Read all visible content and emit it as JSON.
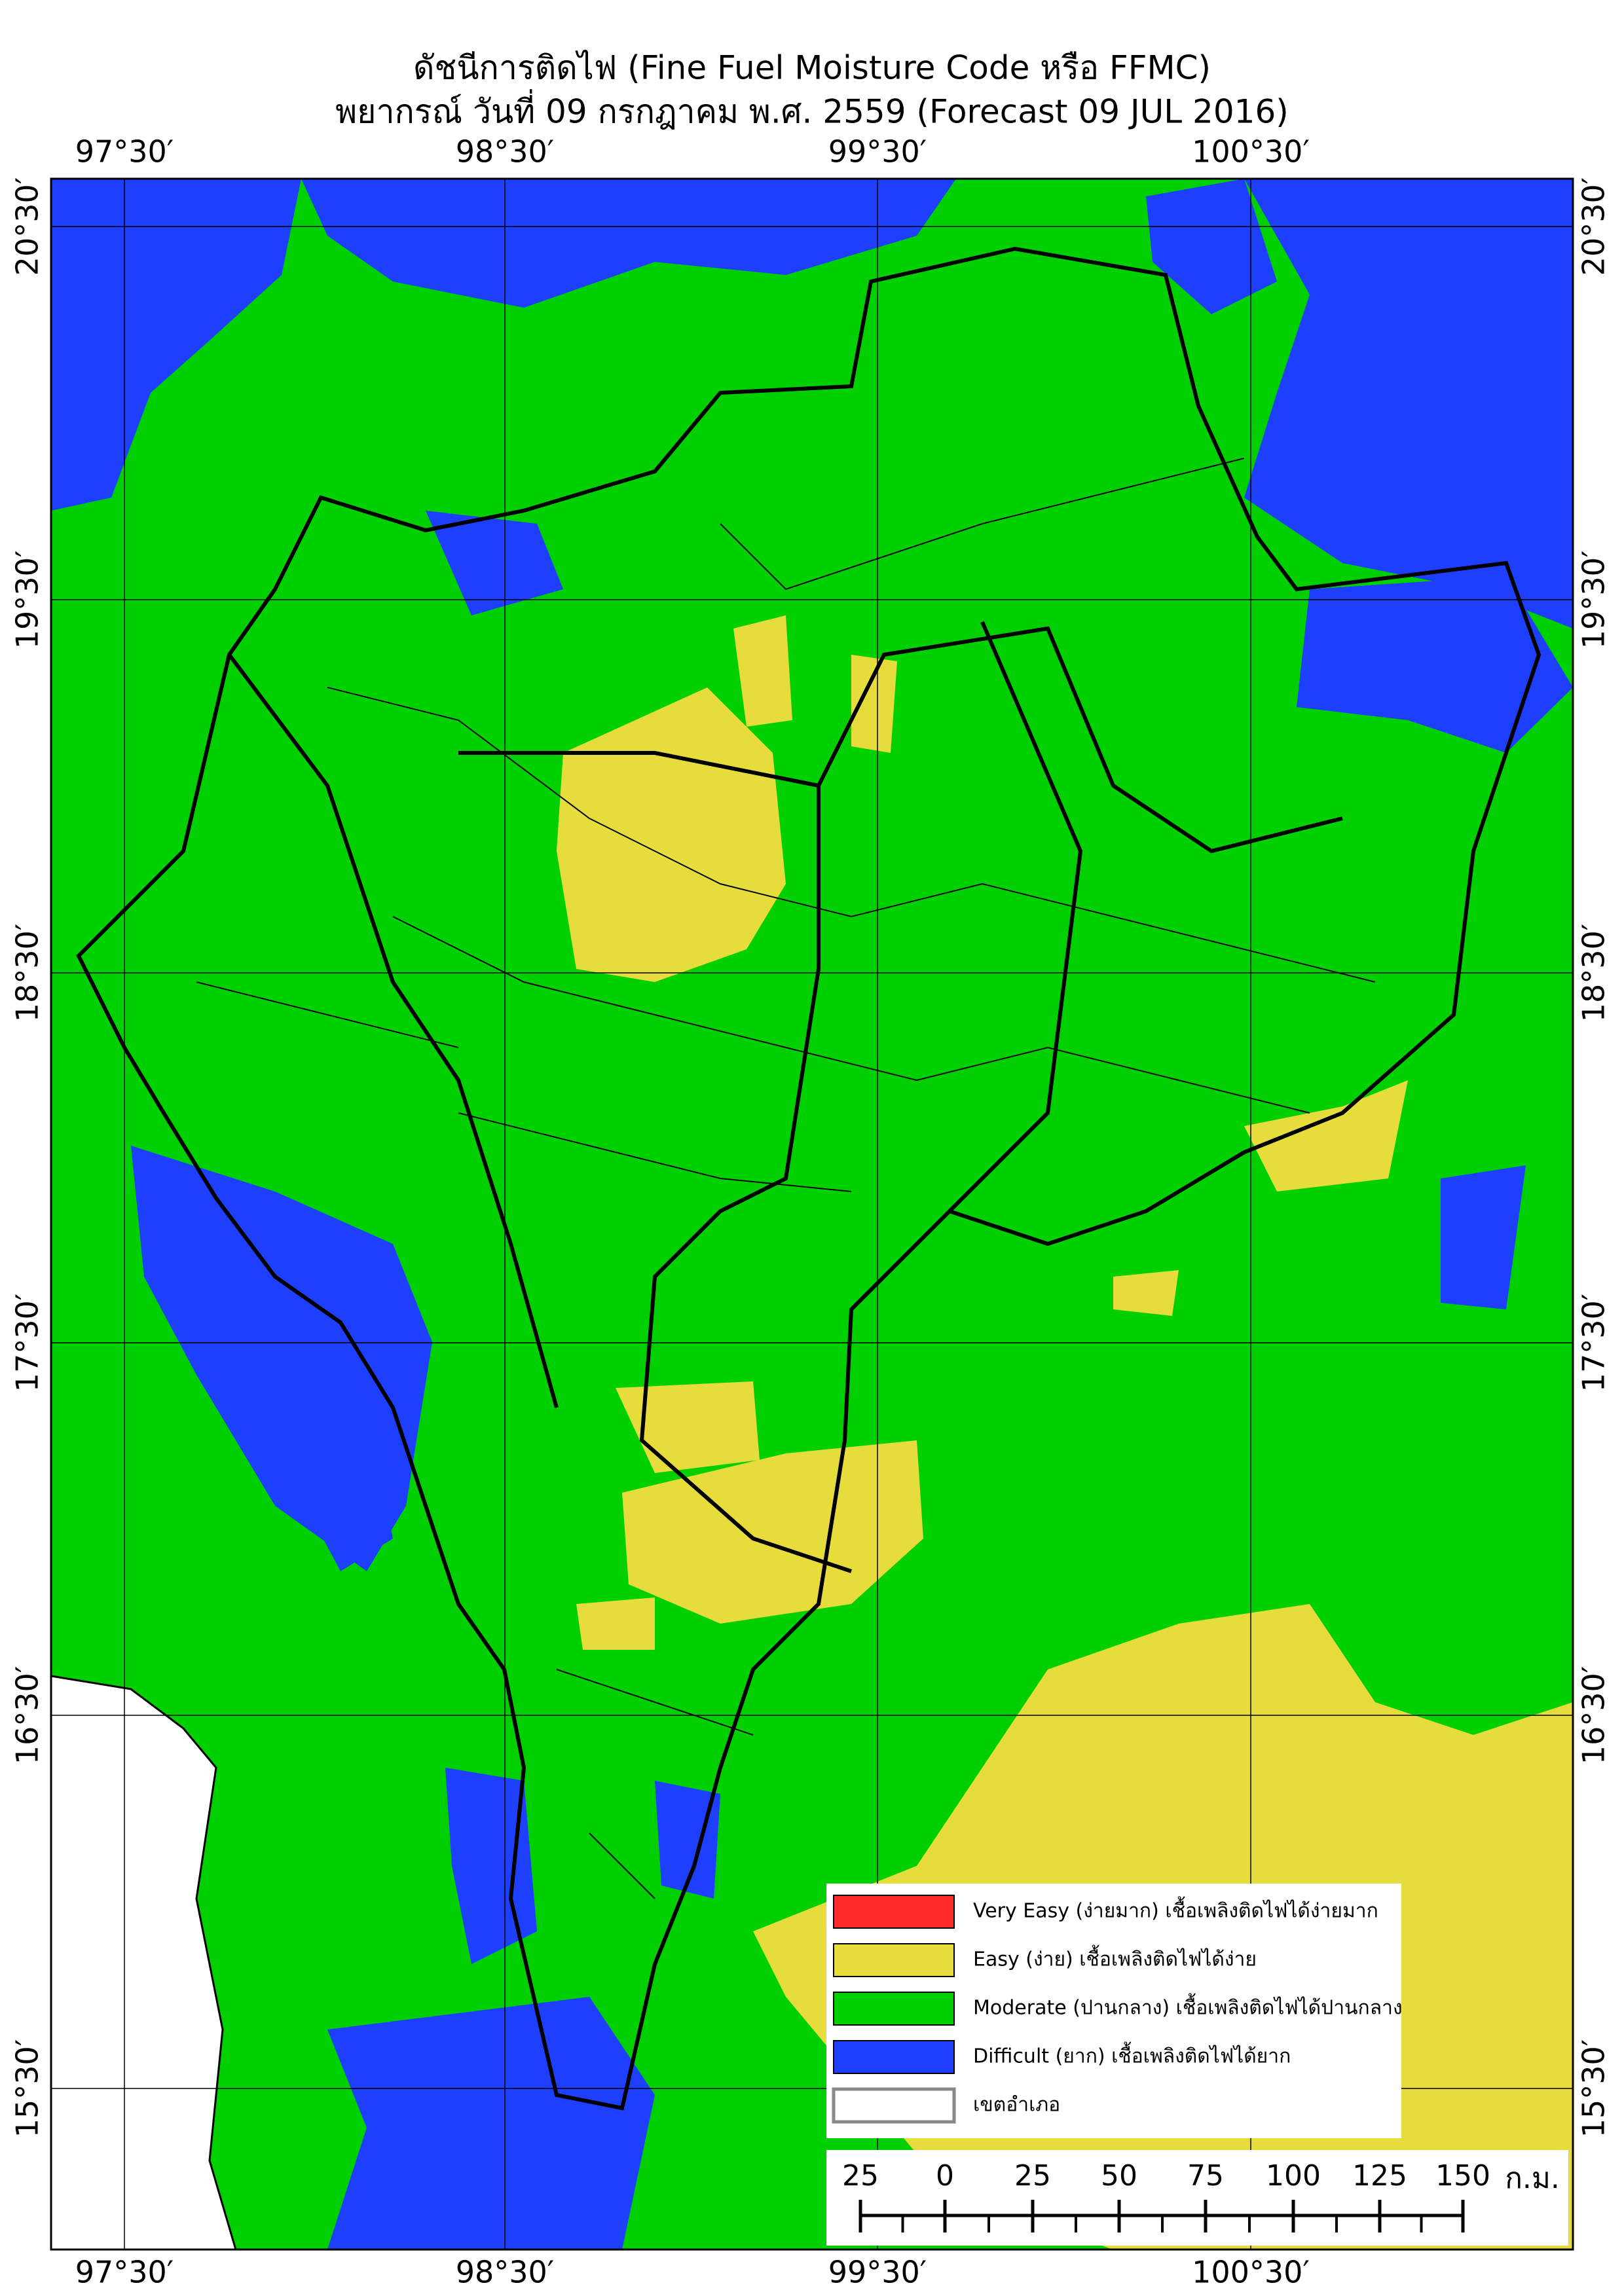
{
  "header": {
    "title": "ดัชนีการติดไฟ (Fine Fuel Moisture Code หรือ FFMC)",
    "subtitle": "พยากรณ์ วันที่ 09 กรกฎาคม พ.ศ. 2559 (Forecast 09 JUL 2016)"
  },
  "map": {
    "lon_labels": [
      "97°30′",
      "98°30′",
      "99°30′",
      "100°30′"
    ],
    "lat_labels": [
      "20°30′",
      "19°30′",
      "18°30′",
      "17°30′",
      "16°30′",
      "15°30′"
    ]
  },
  "legend": {
    "items": [
      {
        "label": "Very Easy (ง่ายมาก) เชื้อเพลิงติดไฟได้ง่ายมาก",
        "color": "#ff2a2a"
      },
      {
        "label": "Easy (ง่าย) เชื้อเพลิงติดไฟได้ง่าย",
        "color": "#e6dc3c"
      },
      {
        "label": "Moderate (ปานกลาง) เชื้อเพลิงติดไฟได้ปานกลาง",
        "color": "#00d000"
      },
      {
        "label": "Difficult (ยาก) เชื้อเพลิงติดไฟได้ยาก",
        "color": "#1f3fff"
      },
      {
        "label": "เขตอำเภอ",
        "color": "#ffffff"
      }
    ]
  },
  "scale_bar": {
    "labels": [
      "25",
      "0",
      "25",
      "50",
      "75",
      "100",
      "125",
      "150"
    ],
    "unit": "ก.ม."
  }
}
